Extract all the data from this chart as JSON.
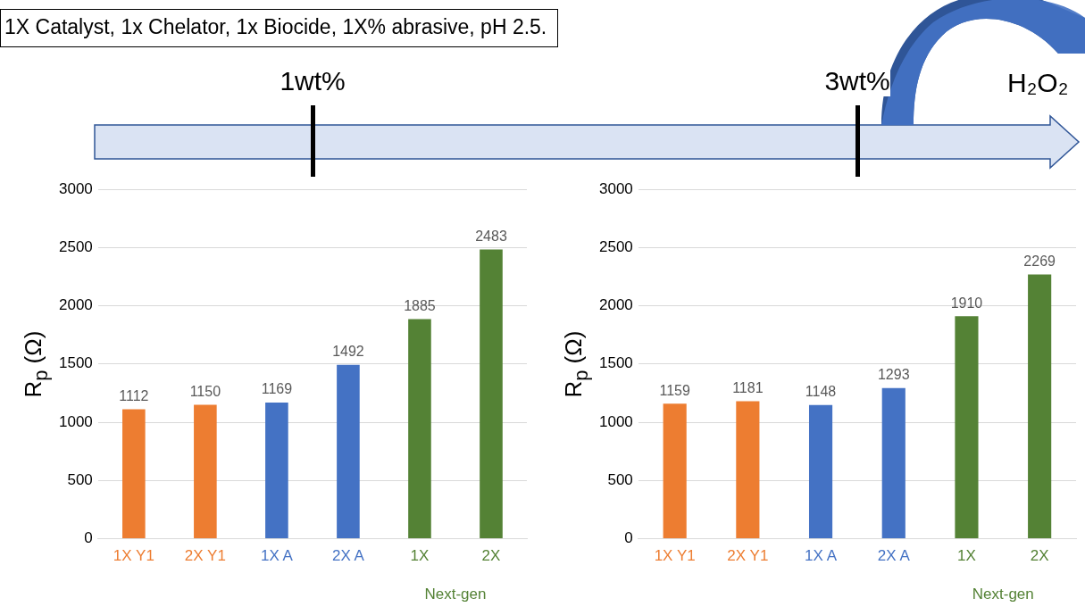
{
  "chart_data": [
    {
      "type": "bar",
      "title": "1X Catalyst, 1x Chelator, 1x Biocide, 1X% abrasive, pH 2.5.",
      "subtitle": "1wt%",
      "ylabel": "R$_{p}$ (Ω)",
      "categories": [
        "1X Y1",
        "2X Y1",
        "1X A",
        "2X A",
        "1X",
        "2X"
      ],
      "values": [
        1112,
        1150,
        1169,
        1492,
        1885,
        2483
      ],
      "colors": [
        "#ed7d31",
        "#ed7d31",
        "#4472c4",
        "#4472c4",
        "#548235",
        "#548235"
      ],
      "ylim": [
        0,
        3000
      ],
      "yticks": [
        0,
        500,
        1000,
        1500,
        2000,
        2500,
        3000
      ],
      "grid": "y",
      "data_labels": true,
      "annotations": [
        "Next-gen"
      ]
    },
    {
      "type": "bar",
      "subtitle": "3wt%",
      "ylabel": "R$_{p}$ (Ω)",
      "categories": [
        "1X Y1",
        "2X Y1",
        "1X A",
        "2X A",
        "1X",
        "2X"
      ],
      "values": [
        1159,
        1181,
        1148,
        1293,
        1910,
        2269
      ],
      "colors": [
        "#ed7d31",
        "#ed7d31",
        "#4472c4",
        "#4472c4",
        "#548235",
        "#548235"
      ],
      "ylim": [
        0,
        3000
      ],
      "yticks": [
        0,
        500,
        1000,
        1500,
        2000,
        2500,
        3000
      ],
      "grid": "y",
      "data_labels": true,
      "annotations": [
        "Next-gen",
        "H₂O₂"
      ]
    }
  ]
}
